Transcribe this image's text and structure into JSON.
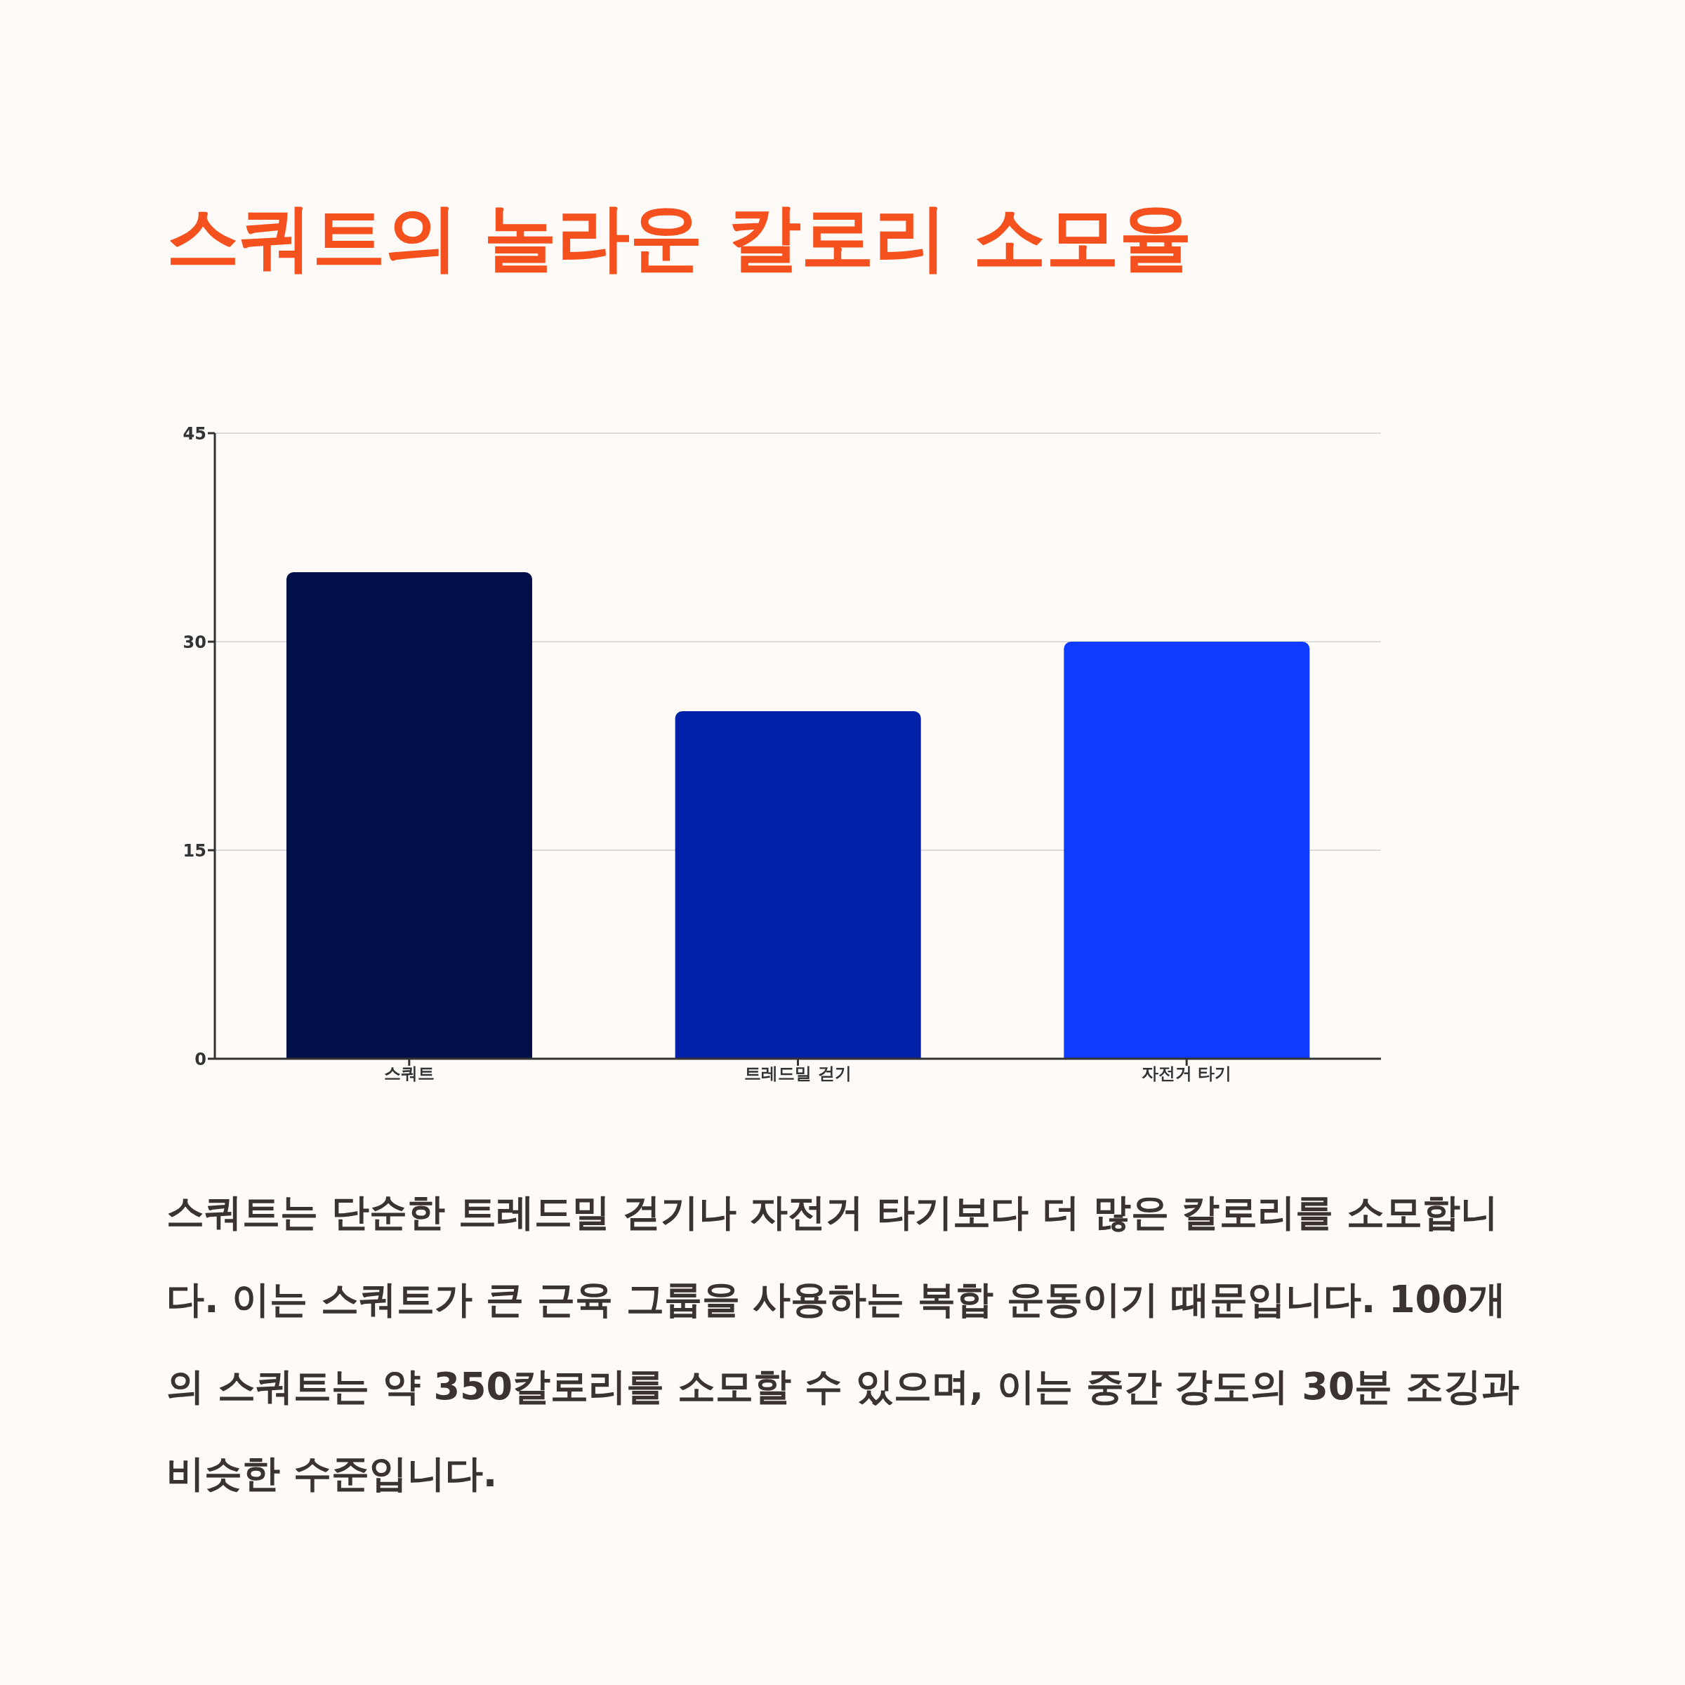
{
  "chart_data": {
    "type": "bar",
    "title": "스쿼트의 놀라운 칼로리 소모율",
    "categories": [
      "스쿼트",
      "트레드밀 걷기",
      "자전거 타기"
    ],
    "values": [
      35,
      25,
      30
    ],
    "colors": [
      "#000f47",
      "#0020a8",
      "#0f3bff"
    ],
    "ylim": [
      0,
      45
    ],
    "yticks": [
      0,
      15,
      30,
      45
    ],
    "grid": "y",
    "legend": false,
    "annotations": [
      "스쿼트는 단순한 트레드밀 걷기나 자전거 타기보다 더 많은 칼로리를 소모합니다. 이는 스쿼트가 큰 근육 그룹을 사용하는 복합 운동이기 때문입니다. 100개의 스쿼트는 약 350칼로리를 소모할 수 있으며, 이는 중간 강도의 30분 조깅과 비슷한 수준입니다."
    ]
  }
}
